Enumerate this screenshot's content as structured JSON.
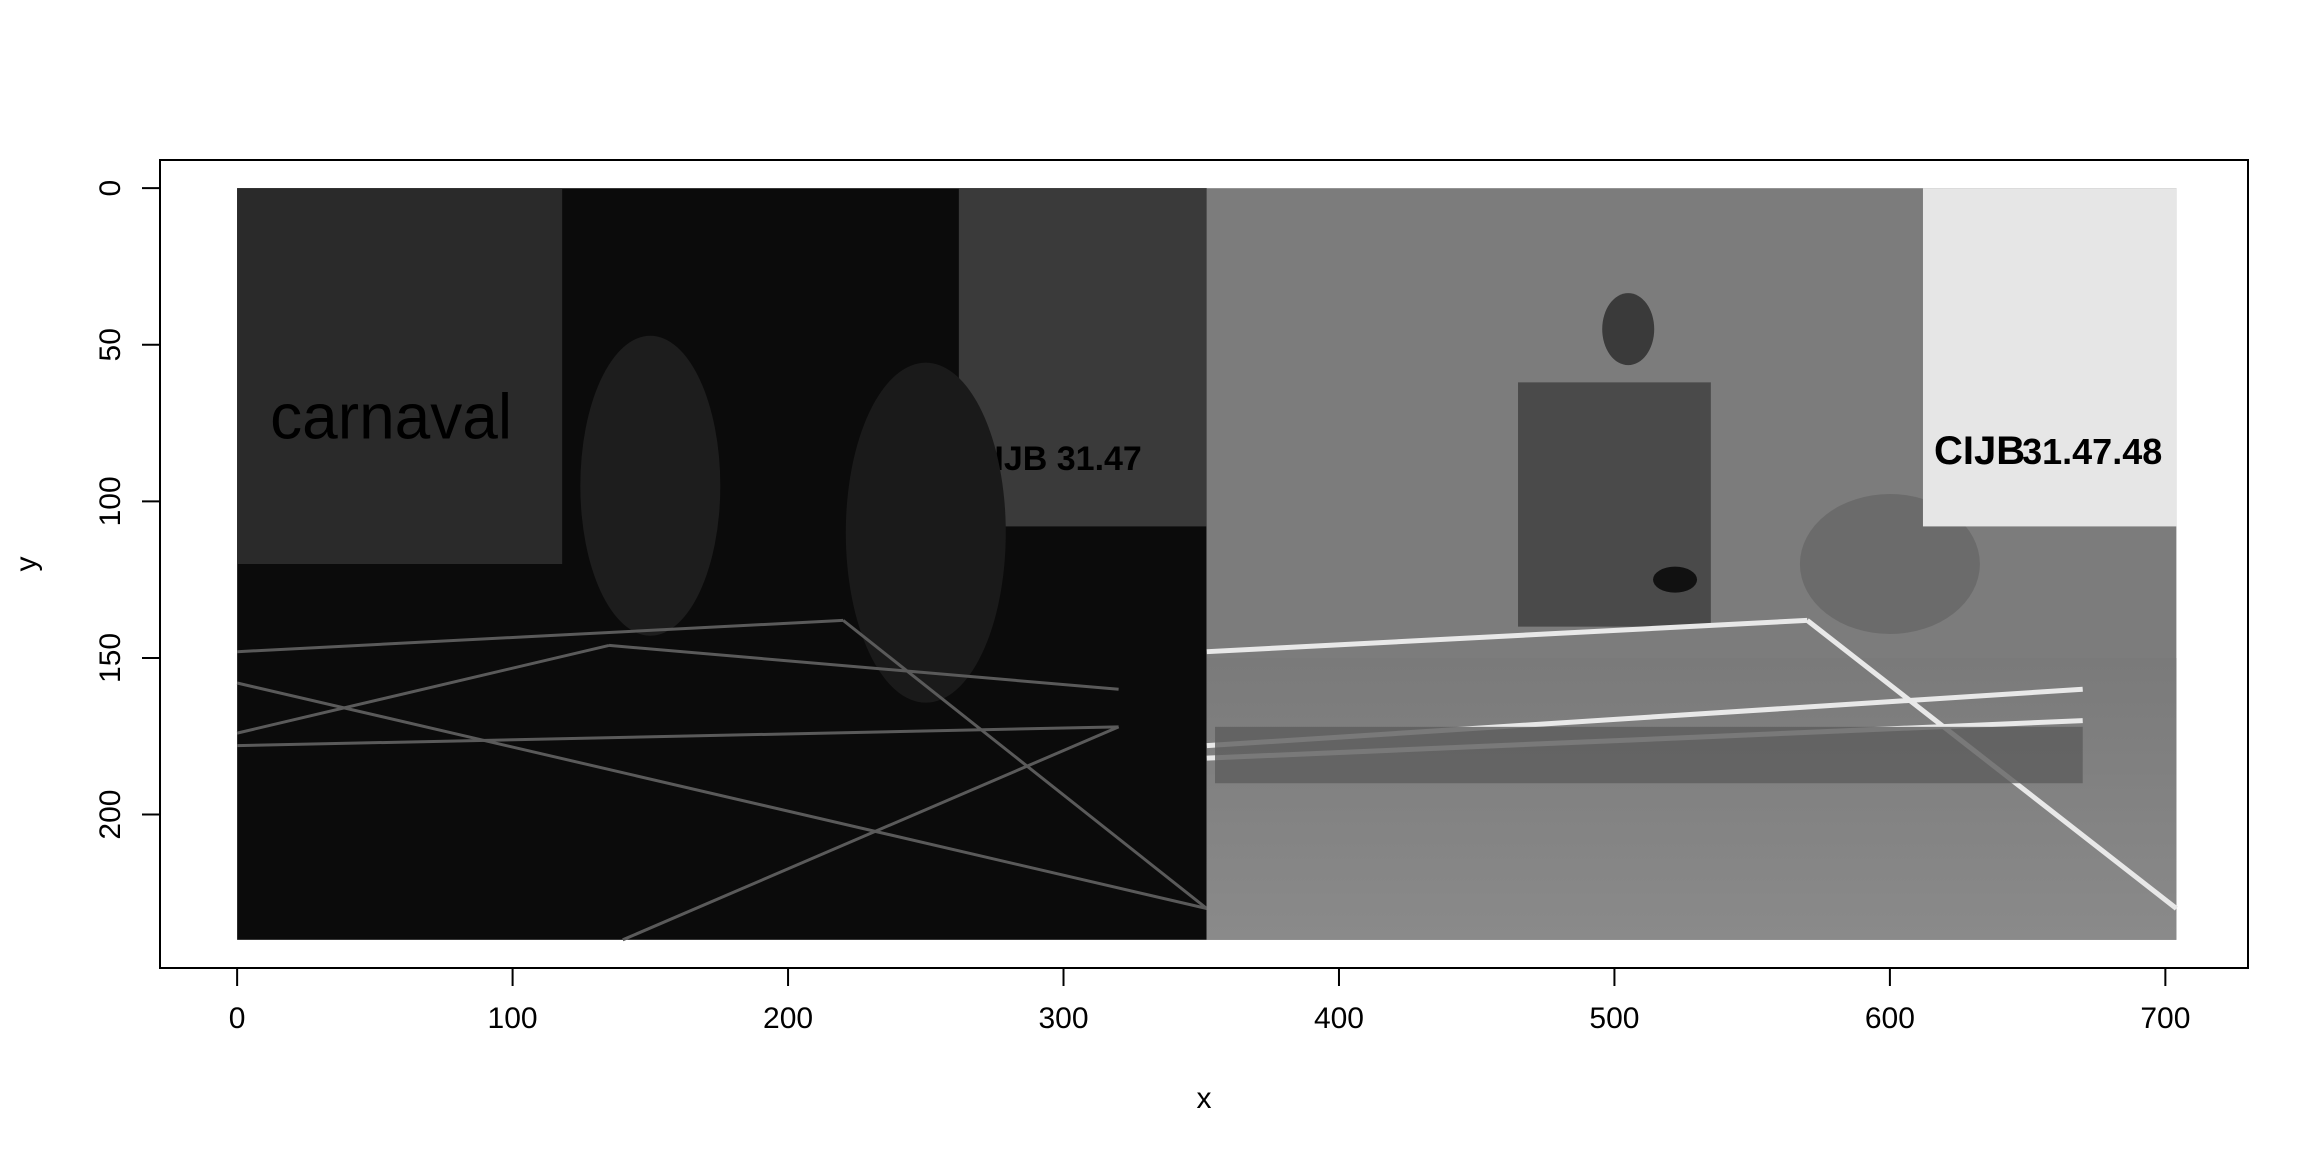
{
  "chart_data": {
    "type": "image",
    "title": "",
    "xlabel": "x",
    "ylabel": "y",
    "xlim": [
      -28,
      730
    ],
    "ylim": [
      -9,
      249
    ],
    "x_ticks": [
      0,
      100,
      200,
      300,
      400,
      500,
      600,
      700
    ],
    "y_ticks": [
      0,
      50,
      100,
      150,
      200
    ],
    "y_reversed": true,
    "image": {
      "x_range": [
        0,
        704
      ],
      "y_range": [
        0,
        240
      ],
      "panels": [
        {
          "name": "dark-frame-difference",
          "x_range": [
            0,
            352
          ],
          "description_color": "#0b0b0b",
          "poster_left_text": "carnaval",
          "poster_right_text": "CIJB 31.47"
        },
        {
          "name": "table-tennis-frame",
          "x_range": [
            352,
            704
          ],
          "description_color": "#7c7c7c",
          "poster_text": "CIJB",
          "poster_phone": "31.47.48"
        }
      ]
    }
  },
  "colors": {
    "axis": "#000000",
    "dark_panel": "#0b0b0b",
    "gray_panel": "#7c7c7c",
    "wall_shadow": "#606060",
    "table_lines": "#e8e8e8"
  }
}
